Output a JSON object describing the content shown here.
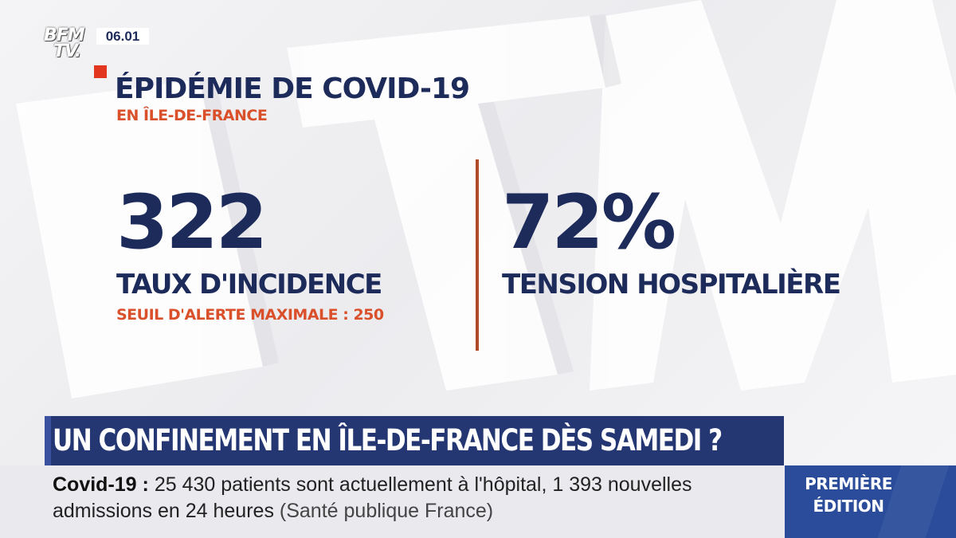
{
  "channel": {
    "logo_line1": "BFM",
    "logo_line2": "TV.",
    "time": "06.01"
  },
  "graphic": {
    "title": "ÉPIDÉMIE DE COVID-19",
    "subtitle": "EN ÎLE-DE-FRANCE",
    "stats": [
      {
        "value": "322",
        "label": "TAUX D'INCIDENCE",
        "note": "SEUIL D'ALERTE MAXIMALE : 250"
      },
      {
        "value": "72%",
        "label": "TENSION HOSPITALIÈRE"
      }
    ]
  },
  "headline": "UN CONFINEMENT EN ÎLE-DE-FRANCE DÈS SAMEDI ?",
  "ticker": {
    "keyword": "Covid-19",
    "separator": " : ",
    "text": "25 430 patients sont actuellement à l'hôpital, 1 393 nouvelles admissions en 24 heures",
    "source": "(Santé publique France)"
  },
  "edition": {
    "line1": "PREMIÈRE",
    "line2": "ÉDITION"
  },
  "colors": {
    "navy": "#1d2b5b",
    "orange": "#d9502a",
    "red": "#e2361f",
    "headline_bg": "#243773",
    "edition_bg": "#2a4c9a"
  }
}
